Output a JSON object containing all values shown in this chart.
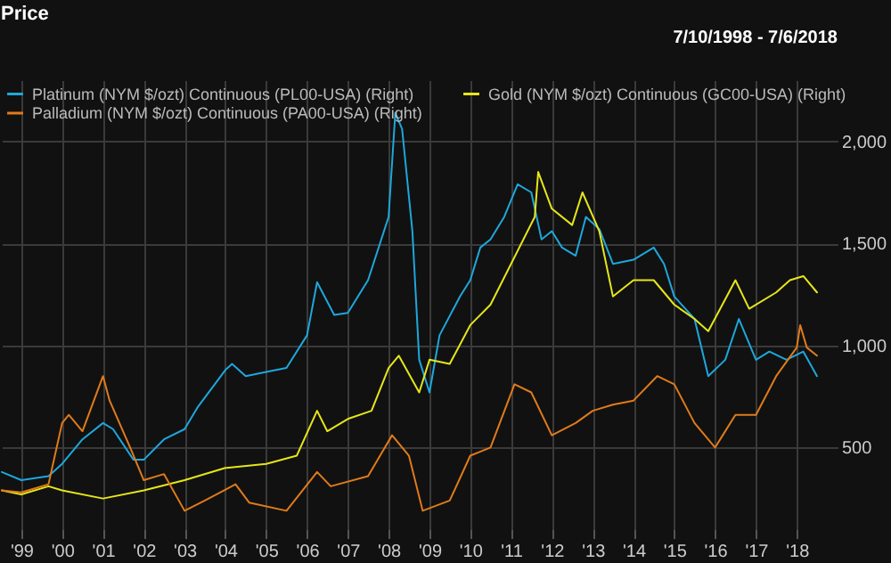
{
  "chart_data": {
    "type": "line",
    "title": "Price",
    "annotations": [
      "7/10/1998 - 7/6/2018"
    ],
    "legend": "top left",
    "grid": true,
    "xlim": [
      "1998-07-10",
      "2019-01-01"
    ],
    "ylim": [
      100,
      2300
    ],
    "yticks": [
      500,
      {
        "value": 1000,
        "label": "1,000"
      },
      {
        "value": 1500,
        "label": "1,500"
      },
      {
        "value": 2000,
        "label": "2,000"
      }
    ],
    "xticks": [
      {
        "value": "1999",
        "label": "'99"
      },
      {
        "value": "2000",
        "label": "'00"
      },
      {
        "value": "2001",
        "label": "'01"
      },
      {
        "value": "2002",
        "label": "'02"
      },
      {
        "value": "2003",
        "label": "'03"
      },
      {
        "value": "2004",
        "label": "'04"
      },
      {
        "value": "2005",
        "label": "'05"
      },
      {
        "value": "2006",
        "label": "'06"
      },
      {
        "value": "2007",
        "label": "'07"
      },
      {
        "value": "2008",
        "label": "'08"
      },
      {
        "value": "2009",
        "label": "'09"
      },
      {
        "value": "2010",
        "label": "'10"
      },
      {
        "value": "2011",
        "label": "'11"
      },
      {
        "value": "2012",
        "label": "'12"
      },
      {
        "value": "2013",
        "label": "'13"
      },
      {
        "value": "2014",
        "label": "'14"
      },
      {
        "value": "2015",
        "label": "'15"
      },
      {
        "value": "2016",
        "label": "'16"
      },
      {
        "value": "2017",
        "label": "'17"
      },
      {
        "value": "2018",
        "label": "'18"
      }
    ],
    "series": [
      {
        "name": "Platinum (NYM $/ozt) Continuous (PL00-USA) (Right)",
        "color": "#1ea7dc",
        "x": [
          "1998-07-10",
          "1999-01",
          "1999-09",
          "2000-01",
          "2000-07",
          "2001-01",
          "2001-04",
          "2001-10",
          "2002-01",
          "2002-07",
          "2003-01",
          "2003-05",
          "2004-01",
          "2004-03",
          "2004-07",
          "2005-01",
          "2005-07",
          "2006-01",
          "2006-04",
          "2006-09",
          "2007-01",
          "2007-07",
          "2008-01",
          "2008-03",
          "2008-05",
          "2008-08",
          "2008-10",
          "2009-01",
          "2009-04",
          "2009-10",
          "2010-01",
          "2010-04",
          "2010-07",
          "2010-11",
          "2011-03",
          "2011-07",
          "2011-10",
          "2012-01",
          "2012-04",
          "2012-08",
          "2012-11",
          "2013-03",
          "2013-07",
          "2014-01",
          "2014-07",
          "2014-10",
          "2015-01",
          "2015-07",
          "2015-11",
          "2016-04",
          "2016-08",
          "2017-01",
          "2017-05",
          "2017-10",
          "2018-03",
          "2018-07"
        ],
        "values": [
          380,
          340,
          360,
          420,
          540,
          620,
          590,
          440,
          440,
          540,
          590,
          700,
          880,
          910,
          850,
          870,
          890,
          1050,
          1310,
          1150,
          1160,
          1320,
          1630,
          2140,
          2060,
          1560,
          930,
          770,
          1050,
          1240,
          1320,
          1480,
          1520,
          1630,
          1790,
          1750,
          1520,
          1560,
          1480,
          1440,
          1630,
          1570,
          1400,
          1420,
          1480,
          1400,
          1240,
          1130,
          850,
          930,
          1130,
          930,
          970,
          930,
          970,
          850
        ]
      },
      {
        "name": "Gold (NYM $/ozt) Continuous (GC00-USA) (Right)",
        "color": "#e6e61a",
        "x": [
          "1998-07-10",
          "1999-01",
          "1999-09",
          "2000-01",
          "2001-01",
          "2002-01",
          "2003-01",
          "2004-01",
          "2005-01",
          "2005-10",
          "2006-04",
          "2006-07",
          "2007-01",
          "2007-08",
          "2008-01",
          "2008-04",
          "2008-10",
          "2009-01",
          "2009-07",
          "2010-01",
          "2010-07",
          "2011-01",
          "2011-08",
          "2011-09",
          "2012-01",
          "2012-07",
          "2012-10",
          "2013-03",
          "2013-07",
          "2014-01",
          "2014-07",
          "2015-01",
          "2015-07",
          "2015-11",
          "2016-07",
          "2016-11",
          "2017-07",
          "2017-11",
          "2018-03",
          "2018-07"
        ],
        "values": [
          290,
          270,
          310,
          290,
          250,
          290,
          340,
          400,
          420,
          460,
          680,
          580,
          640,
          680,
          890,
          950,
          770,
          930,
          910,
          1100,
          1200,
          1400,
          1630,
          1850,
          1670,
          1590,
          1750,
          1560,
          1240,
          1320,
          1320,
          1200,
          1130,
          1070,
          1320,
          1180,
          1260,
          1320,
          1340,
          1260
        ]
      },
      {
        "name": "Palladium (NYM $/ozt) Continuous (PA00-USA) (Right)",
        "color": "#e07b1a",
        "x": [
          "1998-07-10",
          "1999-01",
          "1999-09",
          "2000-01",
          "2000-03",
          "2000-07",
          "2001-01",
          "2001-03",
          "2001-09",
          "2002-01",
          "2002-07",
          "2003-01",
          "2003-07",
          "2004-04",
          "2004-08",
          "2005-07",
          "2006-04",
          "2006-08",
          "2007-07",
          "2008-02",
          "2008-07",
          "2008-11",
          "2009-07",
          "2010-01",
          "2010-07",
          "2011-02",
          "2011-07",
          "2012-01",
          "2012-08",
          "2013-01",
          "2013-07",
          "2014-01",
          "2014-08",
          "2015-01",
          "2015-07",
          "2016-01",
          "2016-07",
          "2017-01",
          "2017-07",
          "2018-01",
          "2018-02",
          "2018-04",
          "2018-07"
        ],
        "values": [
          290,
          280,
          320,
          620,
          660,
          580,
          850,
          730,
          500,
          340,
          370,
          190,
          240,
          320,
          230,
          190,
          380,
          310,
          360,
          560,
          460,
          190,
          240,
          460,
          500,
          810,
          770,
          560,
          620,
          680,
          710,
          730,
          850,
          810,
          620,
          500,
          660,
          660,
          850,
          990,
          1100,
          990,
          950
        ]
      }
    ]
  }
}
